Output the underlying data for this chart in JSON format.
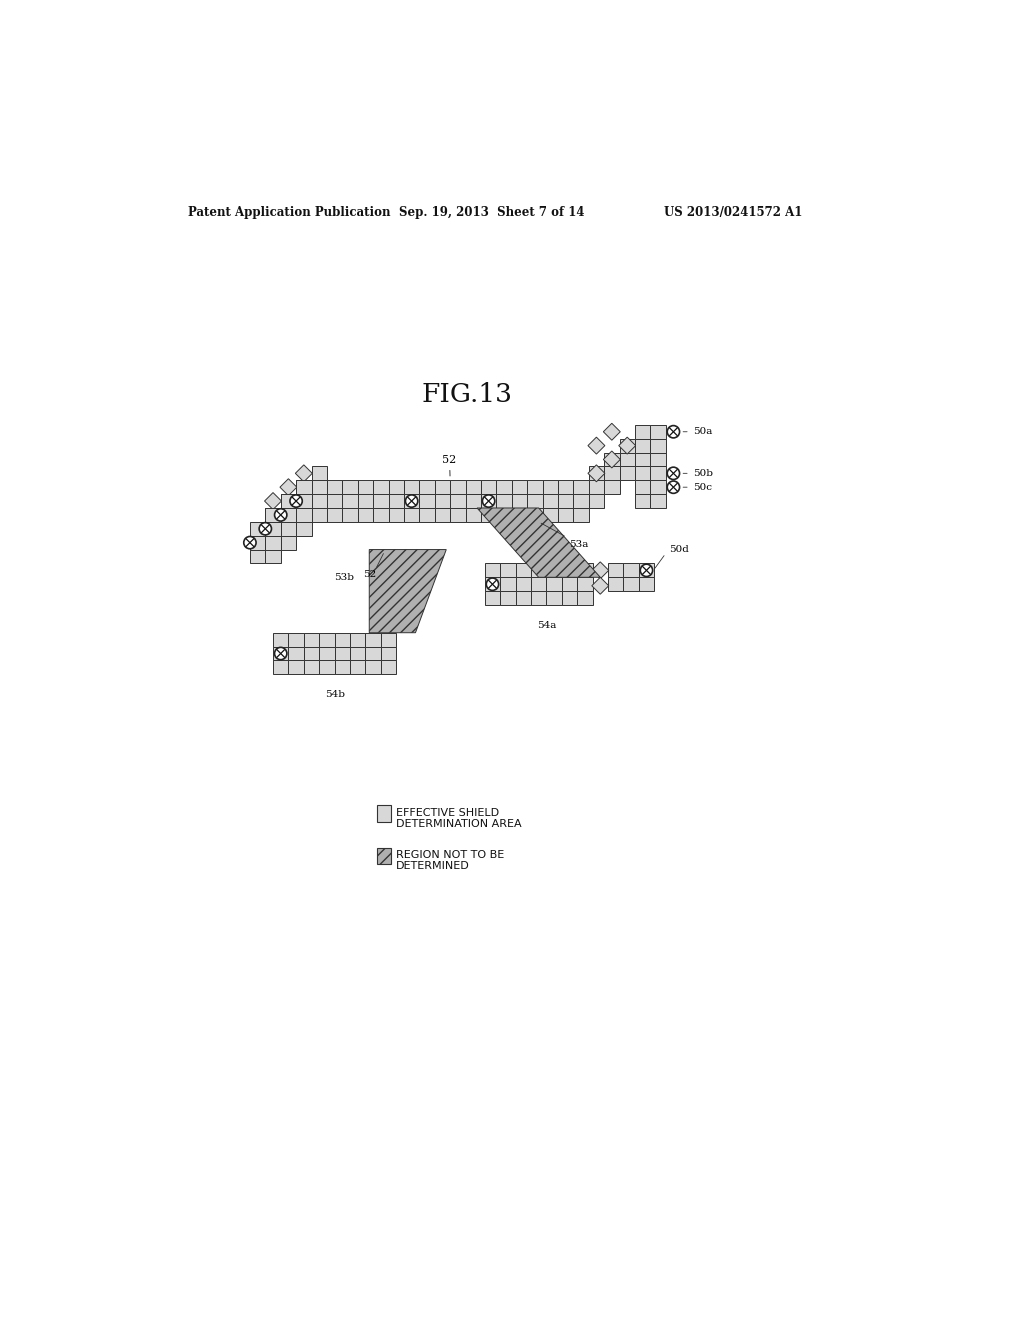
{
  "title": "FIG.13",
  "header_left": "Patent Application Publication",
  "header_center": "Sep. 19, 2013  Sheet 7 of 14",
  "header_right": "US 2013/0241572 A1",
  "bg_color": "#ffffff",
  "fig_width": 10.24,
  "fig_height": 13.2,
  "cell_fc": "#d8d8d8",
  "cell_ec": "#333333",
  "hatch_fc": "#b0b0b0",
  "hatch_pattern": "///",
  "lw": 0.7
}
